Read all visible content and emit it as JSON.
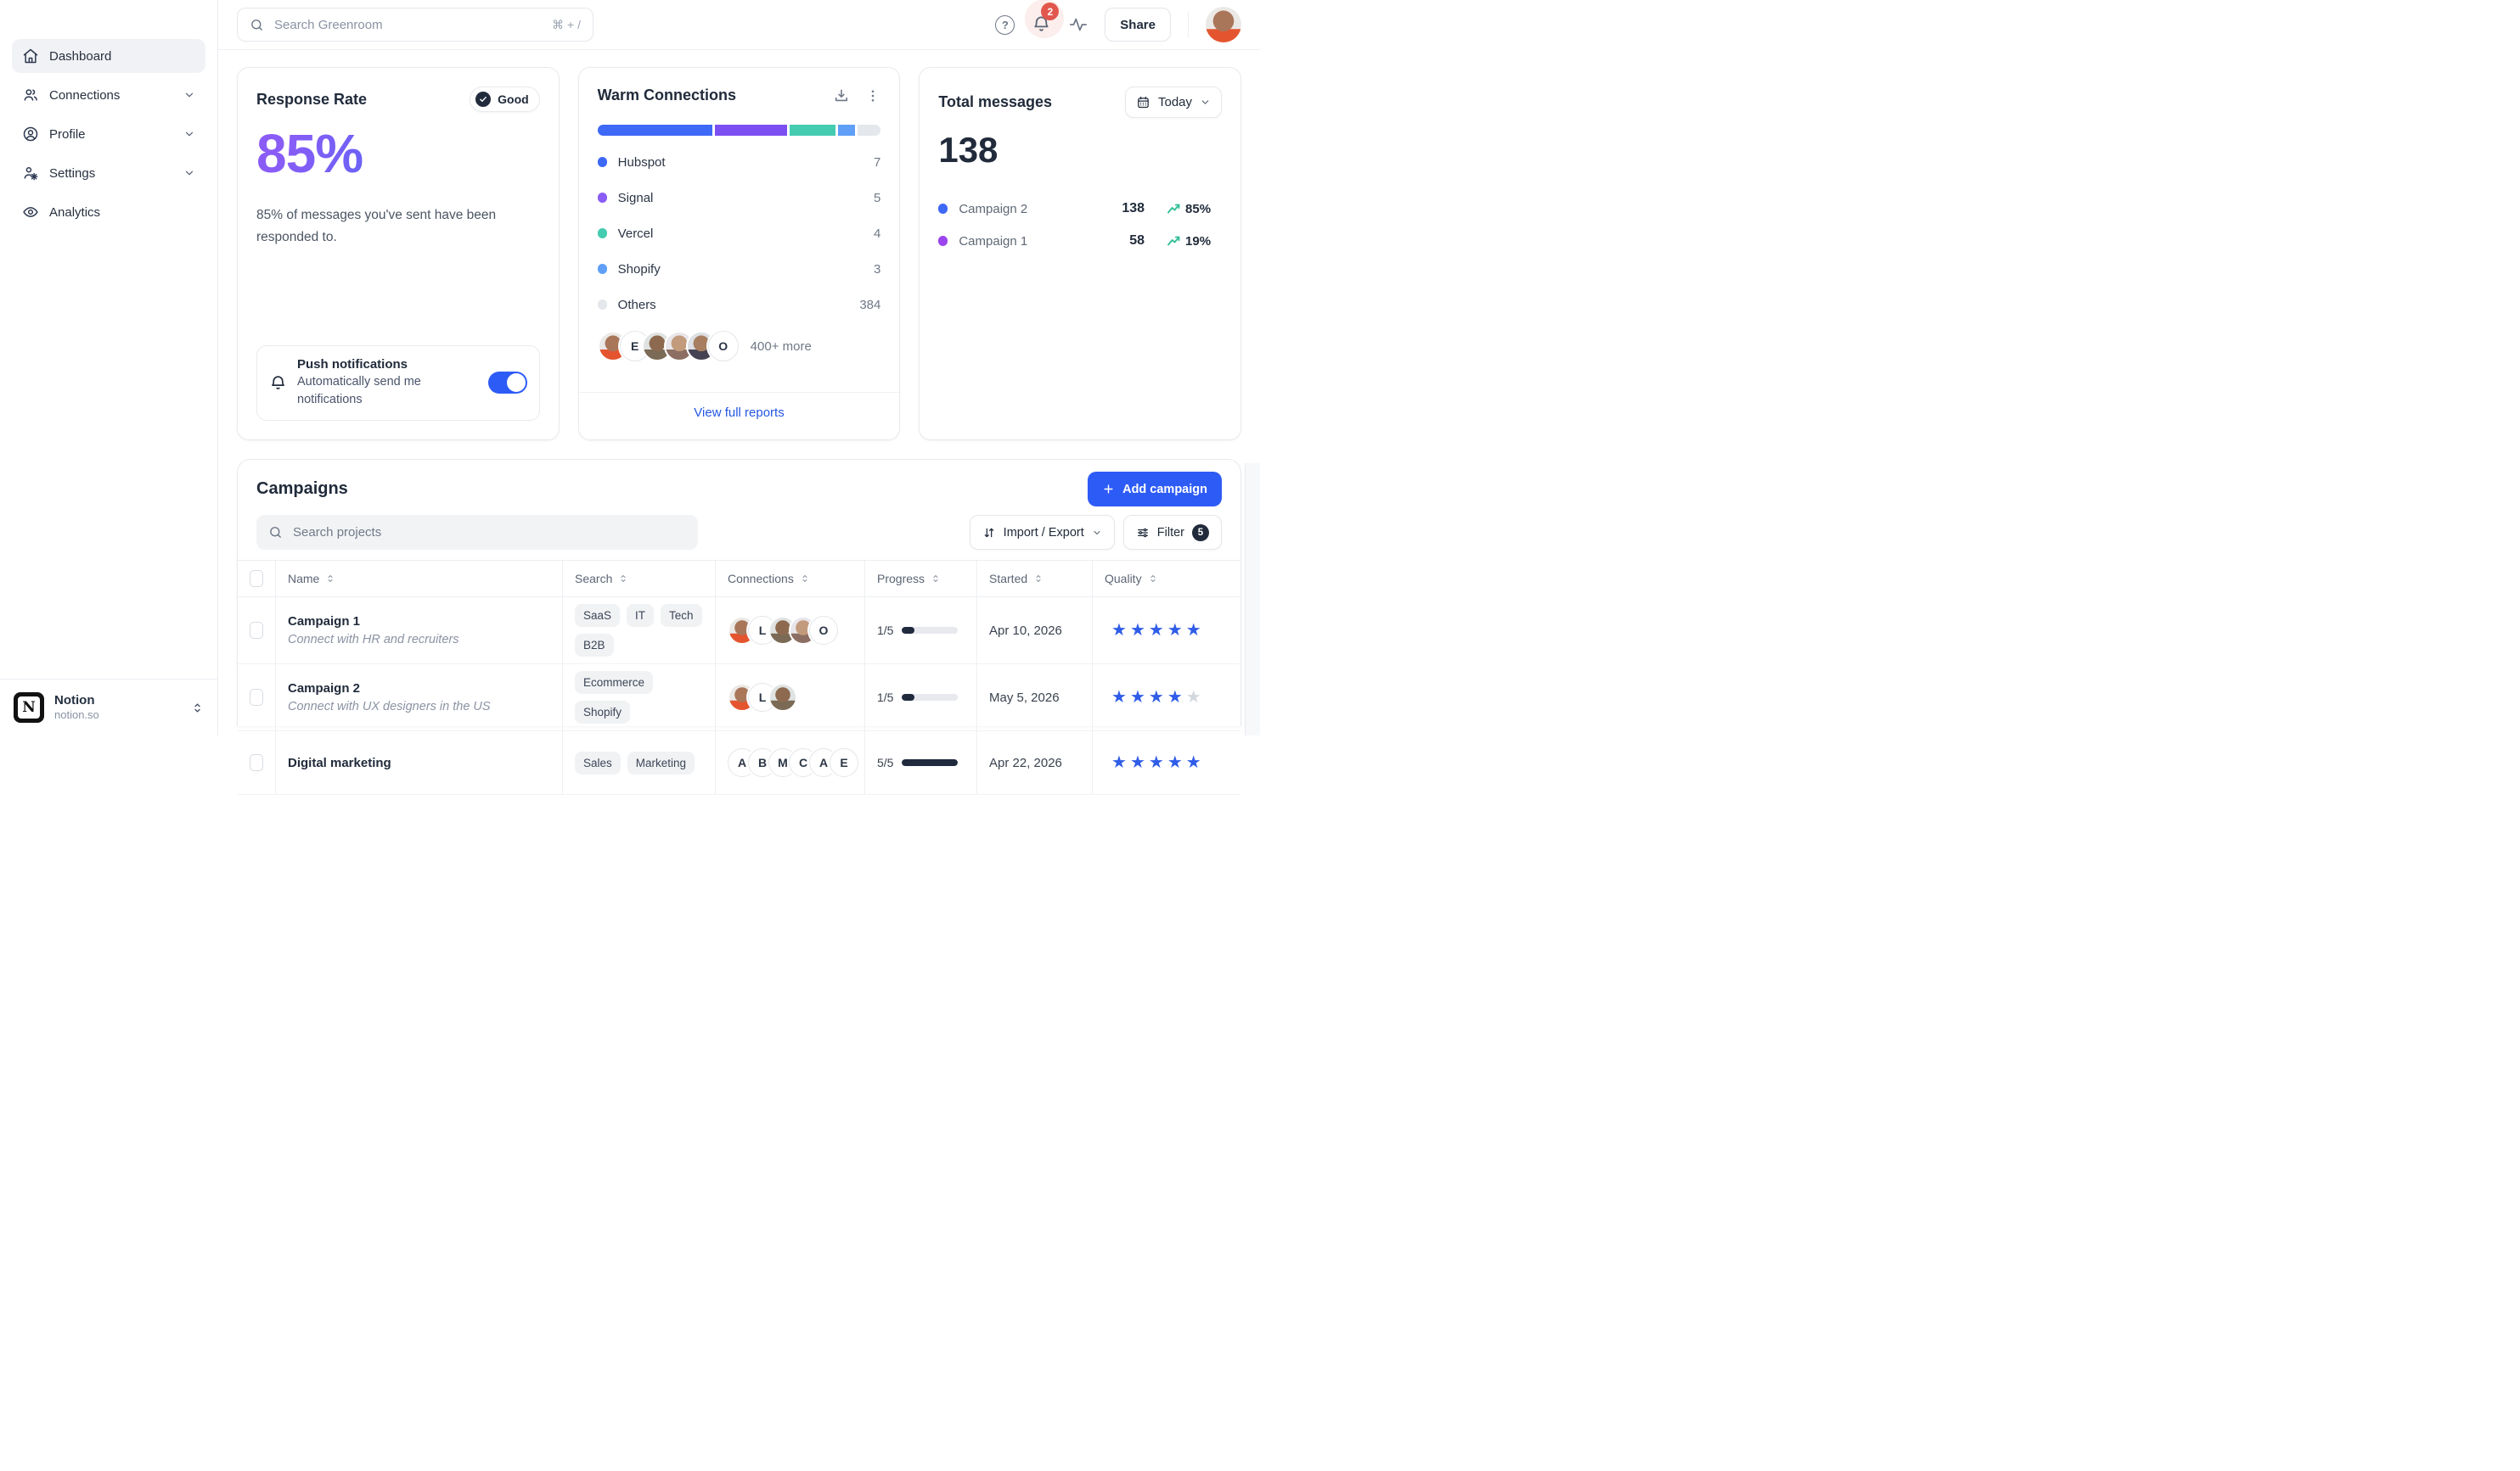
{
  "topbar": {
    "search_placeholder": "Search Greenroom",
    "search_shortcut": "⌘ + /",
    "notification_count": "2",
    "share_label": "Share"
  },
  "sidebar": {
    "items": [
      {
        "label": "Dashboard"
      },
      {
        "label": "Connections"
      },
      {
        "label": "Profile"
      },
      {
        "label": "Settings"
      },
      {
        "label": "Analytics"
      }
    ],
    "workspace": {
      "name": "Notion",
      "domain": "notion.so"
    }
  },
  "response_rate": {
    "title": "Response Rate",
    "status_label": "Good",
    "value": "85%",
    "description": "85% of messages you've sent have been responded to.",
    "push_title": "Push notifications",
    "push_subtitle": "Automatically send me notifications",
    "push_enabled": true
  },
  "warm_connections": {
    "title": "Warm Connections",
    "bar": [
      {
        "color": "#3e68f6",
        "pct": 40
      },
      {
        "color": "#7c4ff3",
        "pct": 25
      },
      {
        "color": "#43ccb0",
        "pct": 16
      },
      {
        "color": "#5f9ff8",
        "pct": 6
      },
      {
        "color": "#e4e7ec",
        "pct": 8
      }
    ],
    "legend": [
      {
        "label": "Hubspot",
        "value": "7",
        "color": "#3e68f6"
      },
      {
        "label": "Signal",
        "value": "5",
        "color": "#8b5cf6"
      },
      {
        "label": "Vercel",
        "value": "4",
        "color": "#43ccb0"
      },
      {
        "label": "Shopify",
        "value": "3",
        "color": "#5f9ff8"
      },
      {
        "label": "Others",
        "value": "384",
        "color": "#e4e7ec"
      }
    ],
    "avatars": [
      {
        "type": "photo",
        "tone": 1
      },
      {
        "type": "initial",
        "label": "E"
      },
      {
        "type": "photo",
        "tone": 2
      },
      {
        "type": "photo",
        "tone": 3
      },
      {
        "type": "photo",
        "tone": 4
      },
      {
        "type": "initial",
        "label": "O"
      }
    ],
    "more_label": "400+ more",
    "footer_link": "View full reports"
  },
  "total_messages": {
    "title": "Total messages",
    "period_label": "Today",
    "value": "138",
    "rows": [
      {
        "label": "Campaign 2",
        "color": "#3e68f6",
        "value": "138",
        "trend": "85%"
      },
      {
        "label": "Campaign 1",
        "color": "#9b45ee",
        "value": "58",
        "trend": "19%"
      }
    ]
  },
  "campaigns": {
    "title": "Campaigns",
    "add_label": "Add campaign",
    "search_placeholder": "Search projects",
    "import_export_label": "Import / Export",
    "filter_label": "Filter",
    "filter_count": "5",
    "columns": [
      "Name",
      "Search",
      "Connections",
      "Progress",
      "Started",
      "Quality"
    ],
    "rows": [
      {
        "name": "Campaign 1",
        "description": "Connect with HR and recruiters",
        "tags": [
          "SaaS",
          "IT",
          "Tech",
          "B2B"
        ],
        "avatars": [
          {
            "type": "photo",
            "tone": 1
          },
          {
            "type": "initial",
            "label": "L"
          },
          {
            "type": "photo",
            "tone": 2
          },
          {
            "type": "photo",
            "tone": 3
          },
          {
            "type": "initial",
            "label": "O"
          }
        ],
        "progress_label": "1/5",
        "progress_pct": 22,
        "started": "Apr 10, 2026",
        "quality": 5
      },
      {
        "name": "Campaign 2",
        "description": "Connect with UX designers in the US",
        "tags": [
          "Ecommerce",
          "Shopify"
        ],
        "avatars": [
          {
            "type": "photo",
            "tone": 1
          },
          {
            "type": "initial",
            "label": "L"
          },
          {
            "type": "photo",
            "tone": 2
          }
        ],
        "progress_label": "1/5",
        "progress_pct": 22,
        "started": "May 5, 2026",
        "quality": 4
      },
      {
        "name": "Digital marketing",
        "tags": [
          "Sales",
          "Marketing"
        ],
        "avatars": [
          {
            "type": "initial",
            "label": "A"
          },
          {
            "type": "initial",
            "label": "B"
          },
          {
            "type": "initial",
            "label": "M"
          },
          {
            "type": "initial",
            "label": "C"
          },
          {
            "type": "initial",
            "label": "A"
          },
          {
            "type": "initial",
            "label": "E"
          }
        ],
        "progress_label": "5/5",
        "progress_pct": 100,
        "started": "Apr 22, 2026",
        "quality": 5
      }
    ]
  },
  "colors": {
    "primary": "#2d5bf6",
    "star_filled": "#2f5ce8",
    "star_empty": "#d3d7de",
    "trend_green": "#2fbf96",
    "badge_red": "#e2574d"
  }
}
